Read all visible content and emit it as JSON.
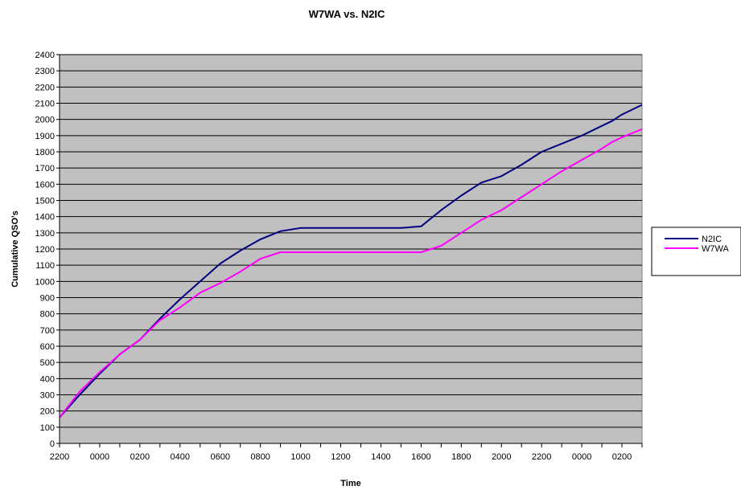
{
  "chart_data": {
    "type": "line",
    "title": "W7WA vs. N2IC",
    "xlabel": "Time",
    "ylabel": "Cumulative QSO's",
    "ylim": [
      0,
      2400
    ],
    "y_ticks": [
      0,
      100,
      200,
      300,
      400,
      500,
      600,
      700,
      800,
      900,
      1000,
      1100,
      1200,
      1300,
      1400,
      1500,
      1600,
      1700,
      1800,
      1900,
      2000,
      2100,
      2200,
      2300,
      2400
    ],
    "x_tick_labels": [
      "2200",
      "0000",
      "0200",
      "0400",
      "0600",
      "0800",
      "1000",
      "1200",
      "1400",
      "1600",
      "1800",
      "2000",
      "2200",
      "0000",
      "0200"
    ],
    "x_range_hours": [
      0,
      29
    ],
    "grid": true,
    "legend_position": "right",
    "plot_background": "#c0c0c0",
    "series": [
      {
        "name": "N2IC",
        "color": "#000080",
        "x": [
          0,
          1,
          2,
          3,
          4,
          5,
          6,
          7,
          8,
          9,
          10,
          11,
          12,
          13,
          14,
          15,
          16,
          17,
          18,
          19,
          20,
          21,
          22,
          23,
          24,
          25,
          26,
          27,
          27.5,
          28,
          29
        ],
        "y": [
          160,
          300,
          430,
          550,
          640,
          770,
          890,
          1000,
          1110,
          1190,
          1260,
          1310,
          1330,
          1330,
          1330,
          1330,
          1330,
          1330,
          1340,
          1440,
          1530,
          1610,
          1650,
          1720,
          1800,
          1850,
          1900,
          1960,
          1990,
          2030,
          2090
        ]
      },
      {
        "name": "W7WA",
        "color": "#ff00ff",
        "x": [
          0,
          1,
          2,
          3,
          4,
          5,
          6,
          7,
          8,
          9,
          10,
          11,
          12,
          13,
          14,
          15,
          16,
          17,
          18,
          19,
          20,
          21,
          22,
          23,
          24,
          25,
          26,
          27,
          27.5,
          28,
          29
        ],
        "y": [
          160,
          320,
          440,
          550,
          640,
          760,
          840,
          930,
          990,
          1060,
          1140,
          1180,
          1180,
          1180,
          1180,
          1180,
          1180,
          1180,
          1180,
          1220,
          1300,
          1380,
          1440,
          1520,
          1600,
          1680,
          1750,
          1820,
          1860,
          1890,
          1940
        ]
      }
    ]
  }
}
